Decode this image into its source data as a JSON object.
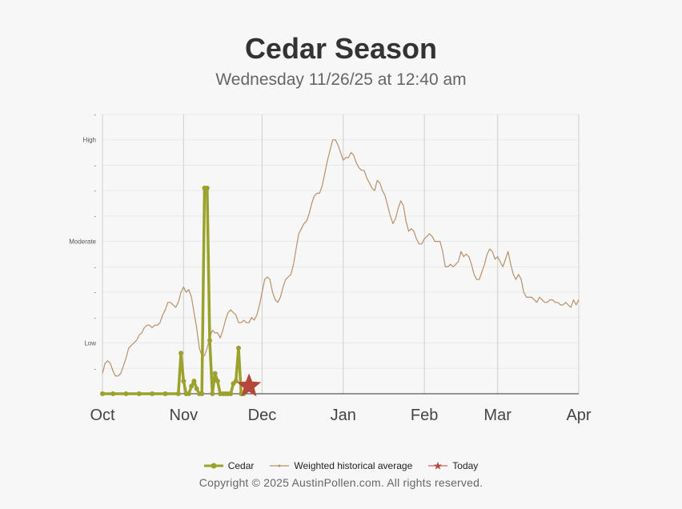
{
  "page": {
    "title": "Cedar Season",
    "subtitle": "Wednesday 11/26/25 at 12:40 am",
    "copyright": "Copyright © 2025 AustinPollen.com.  All rights reserved."
  },
  "legend": [
    {
      "label": "Cedar",
      "color": "#9aa22c",
      "icon": "line-dot"
    },
    {
      "label": "Weighted historical average",
      "color": "#b8906a",
      "icon": "thin-line"
    },
    {
      "label": "Today",
      "color": "#b5473b",
      "icon": "star"
    }
  ],
  "chart_data": {
    "type": "line",
    "x_axis": {
      "type": "date",
      "range": [
        "2025-10-01",
        "2026-04-01"
      ],
      "tick_labels": [
        "Oct",
        "Nov",
        "Dec",
        "Jan",
        "Feb",
        "Mar",
        "Apr"
      ],
      "ticks": [
        "2025-10-01",
        "2025-11-01",
        "2025-12-01",
        "2026-01-01",
        "2026-02-01",
        "2026-03-01",
        "2026-04-01"
      ]
    },
    "y_axis": {
      "range": [
        0,
        11
      ],
      "tick_labels": [
        {
          "value": 1,
          "label": "-"
        },
        {
          "value": 2,
          "label": "Low"
        },
        {
          "value": 3,
          "label": "-"
        },
        {
          "value": 4,
          "label": "-"
        },
        {
          "value": 5,
          "label": "-"
        },
        {
          "value": 6,
          "label": "Moderate"
        },
        {
          "value": 7,
          "label": "-"
        },
        {
          "value": 8,
          "label": "-"
        },
        {
          "value": 9,
          "label": "-"
        },
        {
          "value": 10,
          "label": "High"
        },
        {
          "value": 11,
          "label": "-"
        }
      ]
    },
    "grid": true,
    "series": [
      {
        "name": "Cedar",
        "color": "#9aa22c",
        "style": "thick-line-markers",
        "points": [
          [
            "2025-10-01",
            0
          ],
          [
            "2025-10-05",
            0
          ],
          [
            "2025-10-10",
            0
          ],
          [
            "2025-10-15",
            0
          ],
          [
            "2025-10-20",
            0
          ],
          [
            "2025-10-25",
            0
          ],
          [
            "2025-10-30",
            0
          ],
          [
            "2025-10-31",
            1.6
          ],
          [
            "2025-11-01",
            0.5
          ],
          [
            "2025-11-02",
            0
          ],
          [
            "2025-11-03",
            0
          ],
          [
            "2025-11-04",
            0.3
          ],
          [
            "2025-11-05",
            0.5
          ],
          [
            "2025-11-06",
            0.2
          ],
          [
            "2025-11-07",
            0
          ],
          [
            "2025-11-08",
            0
          ],
          [
            "2025-11-09",
            8.1
          ],
          [
            "2025-11-10",
            8.1
          ],
          [
            "2025-11-11",
            2.1
          ],
          [
            "2025-11-12",
            0
          ],
          [
            "2025-11-13",
            0.8
          ],
          [
            "2025-11-14",
            0.5
          ],
          [
            "2025-11-15",
            0
          ],
          [
            "2025-11-16",
            0
          ],
          [
            "2025-11-17",
            0
          ],
          [
            "2025-11-18",
            0
          ],
          [
            "2025-11-19",
            0
          ],
          [
            "2025-11-20",
            0.4
          ],
          [
            "2025-11-21",
            0.5
          ],
          [
            "2025-11-22",
            1.8
          ],
          [
            "2025-11-23",
            0
          ],
          [
            "2025-11-24",
            0
          ]
        ]
      },
      {
        "name": "Weighted historical average",
        "color": "#b8906a",
        "style": "thin-line",
        "points": [
          [
            "2025-10-01",
            0.8
          ],
          [
            "2025-10-02",
            1.2
          ],
          [
            "2025-10-03",
            1.3
          ],
          [
            "2025-10-04",
            1.2
          ],
          [
            "2025-10-05",
            0.9
          ],
          [
            "2025-10-06",
            0.7
          ],
          [
            "2025-10-07",
            0.7
          ],
          [
            "2025-10-08",
            0.8
          ],
          [
            "2025-10-09",
            1.1
          ],
          [
            "2025-10-10",
            1.4
          ],
          [
            "2025-10-11",
            1.8
          ],
          [
            "2025-10-12",
            1.9
          ],
          [
            "2025-10-13",
            2.0
          ],
          [
            "2025-10-14",
            2.1
          ],
          [
            "2025-10-15",
            2.3
          ],
          [
            "2025-10-16",
            2.4
          ],
          [
            "2025-10-17",
            2.6
          ],
          [
            "2025-10-18",
            2.7
          ],
          [
            "2025-10-19",
            2.7
          ],
          [
            "2025-10-20",
            2.6
          ],
          [
            "2025-10-21",
            2.7
          ],
          [
            "2025-10-22",
            2.7
          ],
          [
            "2025-10-23",
            2.8
          ],
          [
            "2025-10-24",
            3.1
          ],
          [
            "2025-10-25",
            3.3
          ],
          [
            "2025-10-26",
            3.6
          ],
          [
            "2025-10-27",
            3.6
          ],
          [
            "2025-10-28",
            3.5
          ],
          [
            "2025-10-29",
            3.4
          ],
          [
            "2025-10-30",
            3.6
          ],
          [
            "2025-10-31",
            4.0
          ],
          [
            "2025-11-01",
            4.2
          ],
          [
            "2025-11-02",
            4.0
          ],
          [
            "2025-11-03",
            4.1
          ],
          [
            "2025-11-04",
            3.8
          ],
          [
            "2025-11-05",
            3.2
          ],
          [
            "2025-11-06",
            2.6
          ],
          [
            "2025-11-07",
            1.8
          ],
          [
            "2025-11-08",
            1.5
          ],
          [
            "2025-11-09",
            1.5
          ],
          [
            "2025-11-10",
            1.8
          ],
          [
            "2025-11-11",
            2.2
          ],
          [
            "2025-11-12",
            2.5
          ],
          [
            "2025-11-13",
            2.4
          ],
          [
            "2025-11-14",
            2.4
          ],
          [
            "2025-11-15",
            2.2
          ],
          [
            "2025-11-16",
            2.5
          ],
          [
            "2025-11-17",
            2.9
          ],
          [
            "2025-11-18",
            3.2
          ],
          [
            "2025-11-19",
            3.3
          ],
          [
            "2025-11-20",
            3.2
          ],
          [
            "2025-11-21",
            3.1
          ],
          [
            "2025-11-22",
            2.8
          ],
          [
            "2025-11-23",
            2.8
          ],
          [
            "2025-11-24",
            2.9
          ],
          [
            "2025-11-25",
            2.8
          ],
          [
            "2025-11-26",
            2.8
          ],
          [
            "2025-11-27",
            3.0
          ],
          [
            "2025-11-28",
            2.9
          ],
          [
            "2025-11-29",
            3.1
          ],
          [
            "2025-11-30",
            3.5
          ],
          [
            "2025-12-01",
            4.0
          ],
          [
            "2025-12-02",
            4.5
          ],
          [
            "2025-12-03",
            4.6
          ],
          [
            "2025-12-04",
            4.5
          ],
          [
            "2025-12-05",
            4.0
          ],
          [
            "2025-12-06",
            3.7
          ],
          [
            "2025-12-07",
            3.6
          ],
          [
            "2025-12-08",
            3.8
          ],
          [
            "2025-12-09",
            4.2
          ],
          [
            "2025-12-10",
            4.5
          ],
          [
            "2025-12-11",
            4.6
          ],
          [
            "2025-12-12",
            4.7
          ],
          [
            "2025-12-13",
            5.1
          ],
          [
            "2025-12-14",
            5.7
          ],
          [
            "2025-12-15",
            6.3
          ],
          [
            "2025-12-16",
            6.5
          ],
          [
            "2025-12-17",
            6.7
          ],
          [
            "2025-12-18",
            6.8
          ],
          [
            "2025-12-19",
            7.1
          ],
          [
            "2025-12-20",
            7.5
          ],
          [
            "2025-12-21",
            7.8
          ],
          [
            "2025-12-22",
            7.9
          ],
          [
            "2025-12-23",
            7.9
          ],
          [
            "2025-12-24",
            8.2
          ],
          [
            "2025-12-25",
            8.7
          ],
          [
            "2025-12-26",
            9.2
          ],
          [
            "2025-12-27",
            9.6
          ],
          [
            "2025-12-28",
            10.0
          ],
          [
            "2025-12-29",
            10.0
          ],
          [
            "2025-12-30",
            9.8
          ],
          [
            "2025-12-31",
            9.5
          ],
          [
            "2026-01-01",
            9.2
          ],
          [
            "2026-01-02",
            9.3
          ],
          [
            "2026-01-03",
            9.3
          ],
          [
            "2026-01-04",
            9.5
          ],
          [
            "2026-01-05",
            9.4
          ],
          [
            "2026-01-06",
            9.1
          ],
          [
            "2026-01-07",
            8.9
          ],
          [
            "2026-01-08",
            8.8
          ],
          [
            "2026-01-09",
            8.8
          ],
          [
            "2026-01-10",
            8.5
          ],
          [
            "2026-01-11",
            8.3
          ],
          [
            "2026-01-12",
            8.1
          ],
          [
            "2026-01-13",
            8.0
          ],
          [
            "2026-01-14",
            8.4
          ],
          [
            "2026-01-15",
            8.3
          ],
          [
            "2026-01-16",
            8.0
          ],
          [
            "2026-01-17",
            7.8
          ],
          [
            "2026-01-18",
            7.4
          ],
          [
            "2026-01-19",
            7.0
          ],
          [
            "2026-01-20",
            6.7
          ],
          [
            "2026-01-21",
            6.9
          ],
          [
            "2026-01-22",
            7.3
          ],
          [
            "2026-01-23",
            7.6
          ],
          [
            "2026-01-24",
            7.4
          ],
          [
            "2026-01-25",
            6.8
          ],
          [
            "2026-01-26",
            6.4
          ],
          [
            "2026-01-27",
            6.5
          ],
          [
            "2026-01-28",
            6.4
          ],
          [
            "2026-01-29",
            6.1
          ],
          [
            "2026-01-30",
            5.9
          ],
          [
            "2026-01-31",
            5.9
          ],
          [
            "2026-02-01",
            6.1
          ],
          [
            "2026-02-02",
            6.2
          ],
          [
            "2026-02-03",
            6.3
          ],
          [
            "2026-02-04",
            6.2
          ],
          [
            "2026-02-05",
            6.0
          ],
          [
            "2026-02-06",
            6.0
          ],
          [
            "2026-02-07",
            6.0
          ],
          [
            "2026-02-08",
            5.6
          ],
          [
            "2026-02-09",
            5.0
          ],
          [
            "2026-02-10",
            5.0
          ],
          [
            "2026-02-11",
            5.1
          ],
          [
            "2026-02-12",
            5.0
          ],
          [
            "2026-02-13",
            5.1
          ],
          [
            "2026-02-14",
            5.2
          ],
          [
            "2026-02-15",
            5.6
          ],
          [
            "2026-02-16",
            5.4
          ],
          [
            "2026-02-17",
            5.5
          ],
          [
            "2026-02-18",
            5.4
          ],
          [
            "2026-02-19",
            5.1
          ],
          [
            "2026-02-20",
            4.7
          ],
          [
            "2026-02-21",
            4.5
          ],
          [
            "2026-02-22",
            4.5
          ],
          [
            "2026-02-23",
            4.8
          ],
          [
            "2026-02-24",
            5.1
          ],
          [
            "2026-02-25",
            5.5
          ],
          [
            "2026-02-26",
            5.7
          ],
          [
            "2026-02-27",
            5.6
          ],
          [
            "2026-02-28",
            5.3
          ],
          [
            "2026-03-01",
            5.4
          ],
          [
            "2026-03-02",
            5.2
          ],
          [
            "2026-03-03",
            5.0
          ],
          [
            "2026-03-04",
            5.3
          ],
          [
            "2026-03-05",
            5.6
          ],
          [
            "2026-03-06",
            5.1
          ],
          [
            "2026-03-07",
            4.7
          ],
          [
            "2026-03-08",
            4.5
          ],
          [
            "2026-03-09",
            4.7
          ],
          [
            "2026-03-10",
            4.5
          ],
          [
            "2026-03-11",
            4.0
          ],
          [
            "2026-03-12",
            3.8
          ],
          [
            "2026-03-13",
            3.8
          ],
          [
            "2026-03-14",
            3.8
          ],
          [
            "2026-03-15",
            3.7
          ],
          [
            "2026-03-16",
            3.6
          ],
          [
            "2026-03-17",
            3.8
          ],
          [
            "2026-03-18",
            3.7
          ],
          [
            "2026-03-19",
            3.6
          ],
          [
            "2026-03-20",
            3.6
          ],
          [
            "2026-03-21",
            3.7
          ],
          [
            "2026-03-22",
            3.7
          ],
          [
            "2026-03-23",
            3.6
          ],
          [
            "2026-03-24",
            3.6
          ],
          [
            "2026-03-25",
            3.5
          ],
          [
            "2026-03-26",
            3.5
          ],
          [
            "2026-03-27",
            3.6
          ],
          [
            "2026-03-28",
            3.5
          ],
          [
            "2026-03-29",
            3.4
          ],
          [
            "2026-03-30",
            3.7
          ],
          [
            "2026-03-31",
            3.5
          ],
          [
            "2026-04-01",
            3.7
          ]
        ]
      },
      {
        "name": "Today",
        "color": "#b5473b",
        "style": "star-marker",
        "points": [
          [
            "2025-11-26",
            0.3
          ]
        ]
      }
    ]
  }
}
